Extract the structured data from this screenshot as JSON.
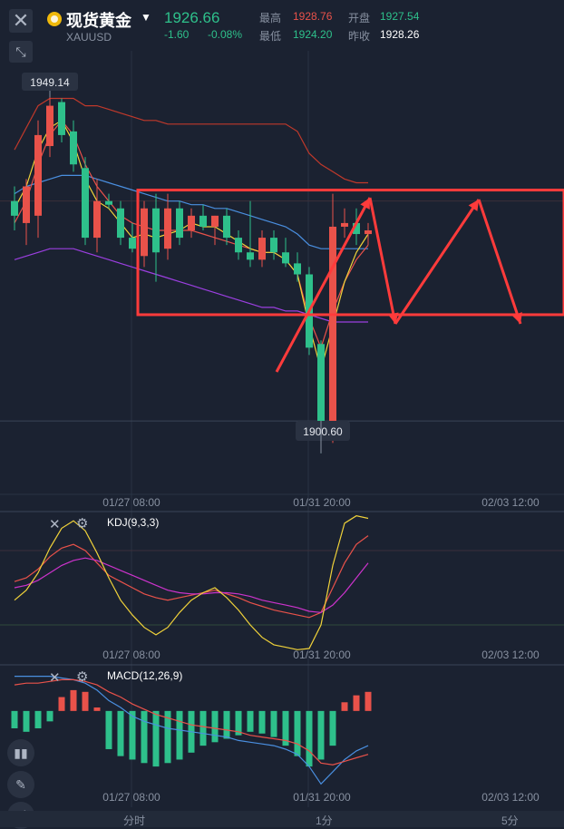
{
  "header": {
    "name": "现货黄金",
    "symbol": "XAUUSD",
    "price": "1926.66",
    "change": "-1.60",
    "change_pct": "-0.08%",
    "high_label": "最高",
    "high": "1928.76",
    "low_label": "最低",
    "low": "1924.20",
    "open_label": "开盘",
    "open": "1927.54",
    "prev_label": "昨收",
    "prev_close": "1928.26"
  },
  "labels": {
    "max_price": "1949.14",
    "min_price": "1900.60",
    "kdj": "KDJ(9,3,3)",
    "macd": "MACD(12,26,9)"
  },
  "time_axis": [
    "01/27 08:00",
    "01/31 20:00",
    "02/03 12:00"
  ],
  "tabs": [
    "分时",
    "1分",
    "5分"
  ],
  "colors": {
    "up": "#e9524a",
    "down": "#2ec08b",
    "background": "#1b2231",
    "annotation": "#ff3b3b"
  },
  "icons": [
    "close-icon",
    "shrink-icon",
    "eye-icon",
    "settings-icon",
    "candles-icon",
    "pencil-icon",
    "line-icon"
  ],
  "chart_data": [
    {
      "type": "candlestick",
      "title": "现货黄金 XAUUSD",
      "ylim": [
        1895,
        1955
      ],
      "candles": [
        {
          "o": 1935.0,
          "h": 1937.0,
          "l": 1931.0,
          "c": 1933.0
        },
        {
          "o": 1932.0,
          "h": 1938.0,
          "l": 1929.0,
          "c": 1937.0
        },
        {
          "o": 1933.0,
          "h": 1946.0,
          "l": 1930.0,
          "c": 1944.0
        },
        {
          "o": 1942.5,
          "h": 1949.14,
          "l": 1941.0,
          "c": 1948.0
        },
        {
          "o": 1948.5,
          "h": 1949.0,
          "l": 1943.0,
          "c": 1944.0
        },
        {
          "o": 1944.5,
          "h": 1946.0,
          "l": 1939.0,
          "c": 1940.0
        },
        {
          "o": 1939.5,
          "h": 1941.0,
          "l": 1929.0,
          "c": 1930.0
        },
        {
          "o": 1930.0,
          "h": 1938.0,
          "l": 1928.0,
          "c": 1935.0
        },
        {
          "o": 1935.0,
          "h": 1936.0,
          "l": 1934.0,
          "c": 1934.5
        },
        {
          "o": 1934.0,
          "h": 1935.0,
          "l": 1929.0,
          "c": 1930.0
        },
        {
          "o": 1930.0,
          "h": 1932.0,
          "l": 1928.0,
          "c": 1928.5
        },
        {
          "o": 1927.5,
          "h": 1935.0,
          "l": 1926.0,
          "c": 1934.0
        },
        {
          "o": 1934.0,
          "h": 1936.0,
          "l": 1924.0,
          "c": 1928.0
        },
        {
          "o": 1928.5,
          "h": 1936.0,
          "l": 1927.0,
          "c": 1934.0
        },
        {
          "o": 1934.0,
          "h": 1935.0,
          "l": 1929.0,
          "c": 1930.0
        },
        {
          "o": 1931.0,
          "h": 1934.0,
          "l": 1930.0,
          "c": 1933.0
        },
        {
          "o": 1933.0,
          "h": 1934.5,
          "l": 1931.0,
          "c": 1931.5
        },
        {
          "o": 1931.5,
          "h": 1933.0,
          "l": 1929.0,
          "c": 1933.0
        },
        {
          "o": 1933.0,
          "h": 1934.0,
          "l": 1929.0,
          "c": 1930.0
        },
        {
          "o": 1930.0,
          "h": 1931.0,
          "l": 1927.0,
          "c": 1928.0
        },
        {
          "o": 1928.0,
          "h": 1935.0,
          "l": 1926.0,
          "c": 1927.0
        },
        {
          "o": 1927.0,
          "h": 1931.0,
          "l": 1926.0,
          "c": 1930.0
        },
        {
          "o": 1930.0,
          "h": 1931.0,
          "l": 1927.0,
          "c": 1928.0
        },
        {
          "o": 1928.0,
          "h": 1930.0,
          "l": 1926.0,
          "c": 1926.5
        },
        {
          "o": 1926.5,
          "h": 1928.0,
          "l": 1924.0,
          "c": 1925.0
        },
        {
          "o": 1925.0,
          "h": 1926.0,
          "l": 1914.0,
          "c": 1915.0
        },
        {
          "o": 1915.5,
          "h": 1916.0,
          "l": 1900.6,
          "c": 1903.0
        },
        {
          "o": 1904.0,
          "h": 1936.0,
          "l": 1902.0,
          "c": 1931.5
        },
        {
          "o": 1931.5,
          "h": 1934.0,
          "l": 1930.0,
          "c": 1932.0
        },
        {
          "o": 1932.0,
          "h": 1934.0,
          "l": 1929.0,
          "c": 1930.5
        },
        {
          "o": 1930.5,
          "h": 1932.0,
          "l": 1929.0,
          "c": 1931.0
        }
      ],
      "overlays": {
        "boll_upper": [
          1942,
          1945,
          1948,
          1949,
          1949,
          1949,
          1948,
          1948,
          1947.5,
          1947,
          1946.5,
          1946,
          1946,
          1945.5,
          1945.5,
          1945.5,
          1945.5,
          1945.5,
          1945.5,
          1945.5,
          1945.5,
          1945.5,
          1945.5,
          1945.5,
          1944.5,
          1941.5,
          1940,
          1939,
          1938,
          1937.5,
          1937.5
        ],
        "boll_mid": [
          1936,
          1937,
          1937.5,
          1938,
          1938.5,
          1938.5,
          1938.5,
          1938,
          1937.5,
          1937,
          1936.5,
          1936,
          1935.5,
          1935,
          1935,
          1934.5,
          1934.5,
          1934,
          1934,
          1933.5,
          1933,
          1932.5,
          1932,
          1931.5,
          1930.5,
          1929,
          1928.5,
          1928.5,
          1928.5,
          1928.5,
          1928.5
        ],
        "boll_lower": [
          1927,
          1927.5,
          1928,
          1928.5,
          1928.5,
          1928.5,
          1928,
          1927.5,
          1927,
          1926.5,
          1926,
          1925.5,
          1925,
          1924.5,
          1924,
          1923.5,
          1923,
          1922.5,
          1922,
          1921.5,
          1921,
          1920.5,
          1920.5,
          1920,
          1920,
          1919.5,
          1919,
          1918.5,
          1918.5,
          1918.5,
          1918.5
        ],
        "ma_red": [
          1932,
          1935,
          1940,
          1944,
          1946,
          1944,
          1940,
          1937,
          1935,
          1933,
          1932,
          1931.5,
          1931,
          1931,
          1931,
          1931,
          1930.5,
          1930,
          1929.5,
          1929,
          1928.5,
          1928,
          1928,
          1927,
          1925,
          1919,
          1915,
          1920,
          1924,
          1927,
          1929
        ],
        "ma_yellow": [
          1934,
          1937,
          1942,
          1945,
          1946,
          1943,
          1938,
          1935,
          1934,
          1932,
          1930,
          1930.5,
          1930,
          1930.5,
          1931,
          1932,
          1931.5,
          1931.5,
          1930.5,
          1929.5,
          1928.5,
          1928,
          1928,
          1927,
          1925,
          1918,
          1912,
          1918,
          1924,
          1928,
          1930.5
        ]
      },
      "annotations": [
        "rectangle 1919.5-1936.5",
        "zigzag arrows"
      ]
    },
    {
      "type": "line",
      "title": "KDJ(9,3,3)",
      "ylim": [
        -10,
        110
      ],
      "series": [
        {
          "name": "K",
          "values": [
            55,
            58,
            65,
            75,
            82,
            85,
            80,
            70,
            60,
            55,
            50,
            45,
            42,
            40,
            42,
            44,
            46,
            48,
            45,
            42,
            38,
            35,
            32,
            30,
            28,
            26,
            30,
            50,
            70,
            85,
            92
          ]
        },
        {
          "name": "D",
          "values": [
            50,
            52,
            56,
            62,
            68,
            72,
            74,
            72,
            68,
            64,
            60,
            56,
            52,
            48,
            46,
            45,
            45,
            46,
            46,
            45,
            43,
            40,
            38,
            36,
            34,
            31,
            30,
            36,
            46,
            58,
            70
          ]
        },
        {
          "name": "J",
          "values": [
            40,
            48,
            62,
            82,
            98,
            104,
            96,
            78,
            58,
            40,
            28,
            18,
            12,
            18,
            30,
            40,
            46,
            50,
            42,
            32,
            20,
            10,
            4,
            2,
            0,
            1,
            20,
            68,
            102,
            108,
            106
          ]
        }
      ]
    },
    {
      "type": "bar",
      "title": "MACD(12,26,9)",
      "ylim": [
        -4.5,
        2.5
      ],
      "series": [
        {
          "name": "MACD",
          "values": [
            -1.0,
            -1.2,
            -1.0,
            -0.6,
            0.8,
            1.2,
            1.1,
            0.2,
            -2.2,
            -2.6,
            -2.8,
            -3.0,
            -3.2,
            -3.0,
            -2.8,
            -2.4,
            -2.0,
            -1.8,
            -1.6,
            -1.4,
            -1.2,
            -1.3,
            -1.5,
            -2.0,
            -2.6,
            -3.2,
            -2.8,
            -2.0,
            0.5,
            0.9,
            1.1
          ]
        },
        {
          "name": "DIF",
          "values": [
            2.0,
            2.0,
            2.0,
            2.0,
            1.9,
            1.8,
            1.6,
            1.2,
            0.6,
            0.2,
            -0.3,
            -0.6,
            -0.8,
            -1.0,
            -1.1,
            -1.2,
            -1.3,
            -1.4,
            -1.5,
            -1.7,
            -1.8,
            -1.9,
            -2.0,
            -2.2,
            -2.5,
            -3.2,
            -4.2,
            -3.5,
            -2.8,
            -2.3,
            -2.0
          ]
        },
        {
          "name": "DEA",
          "values": [
            1.5,
            1.6,
            1.6,
            1.7,
            1.8,
            1.8,
            1.7,
            1.5,
            1.1,
            0.8,
            0.4,
            0.1,
            -0.2,
            -0.4,
            -0.6,
            -0.8,
            -0.9,
            -1.0,
            -1.1,
            -1.2,
            -1.4,
            -1.5,
            -1.6,
            -1.7,
            -1.9,
            -2.3,
            -3.0,
            -3.1,
            -2.9,
            -2.7,
            -2.5
          ]
        }
      ]
    }
  ]
}
